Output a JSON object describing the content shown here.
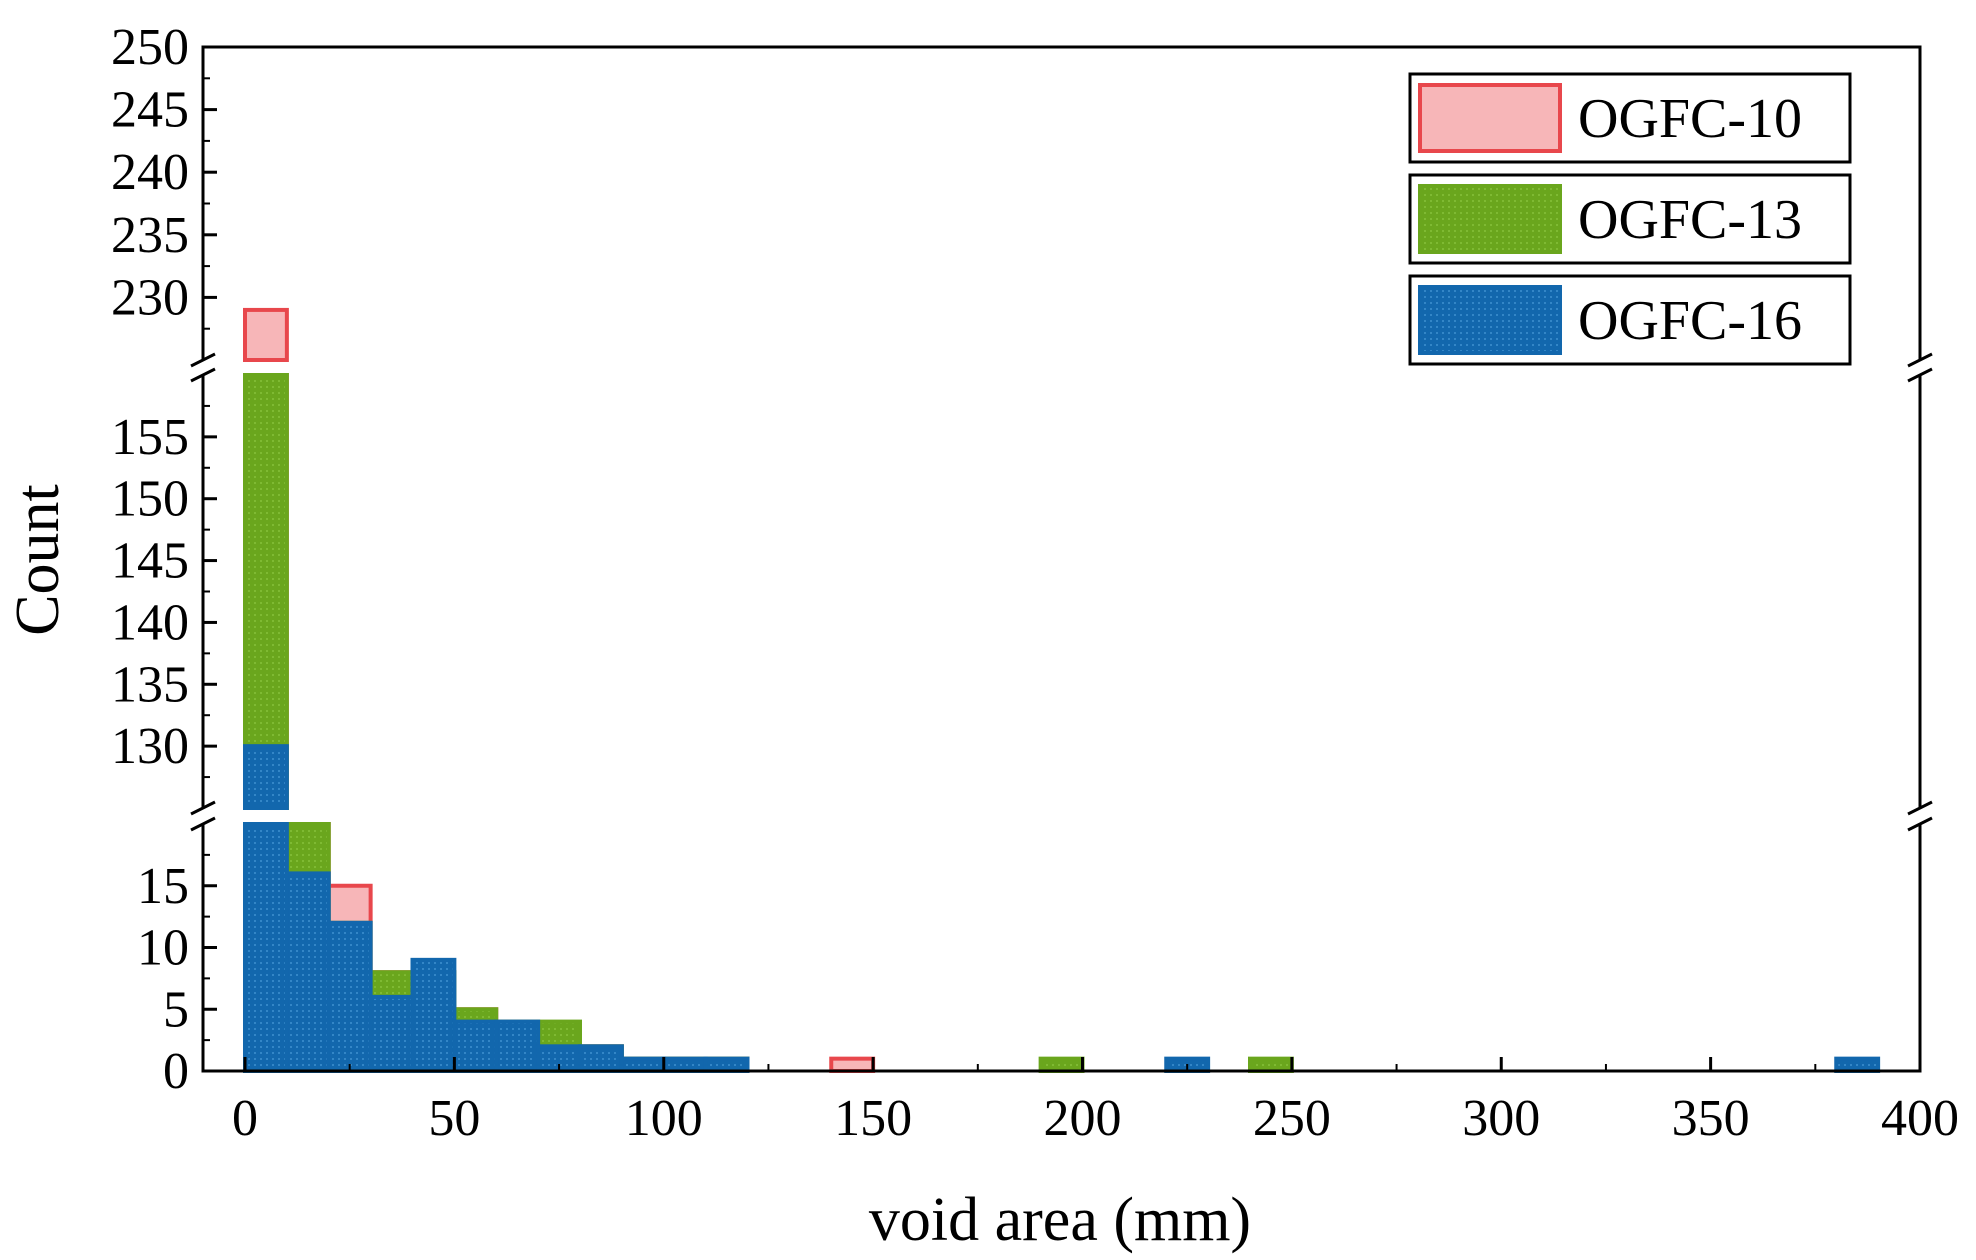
{
  "chart_data": {
    "type": "bar",
    "title": "",
    "xlabel": "void area (mm)",
    "ylabel": "Count",
    "xlim": [
      -10,
      400
    ],
    "x_ticks": [
      "0",
      "50",
      "100",
      "150",
      "200",
      "250",
      "300",
      "350",
      "400"
    ],
    "y_segments": [
      {
        "range": [
          0,
          20
        ],
        "ticks": [
          "0",
          "5",
          "10",
          "15"
        ]
      },
      {
        "range": [
          125,
          160
        ],
        "ticks": [
          "130",
          "135",
          "140",
          "145",
          "150",
          "155"
        ]
      },
      {
        "range": [
          225,
          250
        ],
        "ticks": [
          "230",
          "235",
          "240",
          "245",
          "250"
        ]
      }
    ],
    "bin_width": 10,
    "legend_position": "top-right",
    "series": [
      {
        "name": "OGFC-10",
        "color": "#e8474c",
        "fill": "#f7b6b8",
        "bins": [
          [
            0,
            229
          ],
          [
            10,
            20
          ],
          [
            20,
            15
          ],
          [
            30,
            8
          ],
          [
            40,
            8
          ],
          [
            50,
            5
          ],
          [
            60,
            4
          ],
          [
            70,
            3
          ],
          [
            80,
            2
          ],
          [
            90,
            1
          ],
          [
            100,
            1
          ],
          [
            110,
            1
          ],
          [
            140,
            1
          ]
        ]
      },
      {
        "name": "OGFC-13",
        "color": "#6aa61d",
        "fill": "#6aa61d",
        "bins": [
          [
            0,
            160
          ],
          [
            10,
            20
          ],
          [
            20,
            12
          ],
          [
            30,
            8
          ],
          [
            40,
            8
          ],
          [
            50,
            5
          ],
          [
            60,
            4
          ],
          [
            70,
            4
          ],
          [
            80,
            2
          ],
          [
            90,
            1
          ],
          [
            100,
            1
          ],
          [
            110,
            1
          ],
          [
            190,
            1
          ],
          [
            240,
            1
          ]
        ]
      },
      {
        "name": "OGFC-16",
        "color": "#1267ad",
        "fill": "#1267ad",
        "bins": [
          [
            0,
            130
          ],
          [
            10,
            16
          ],
          [
            20,
            12
          ],
          [
            30,
            6
          ],
          [
            40,
            9
          ],
          [
            50,
            4
          ],
          [
            60,
            4
          ],
          [
            70,
            2
          ],
          [
            80,
            2
          ],
          [
            90,
            1
          ],
          [
            100,
            1
          ],
          [
            110,
            1
          ],
          [
            220,
            1
          ],
          [
            380,
            1
          ]
        ]
      }
    ]
  }
}
